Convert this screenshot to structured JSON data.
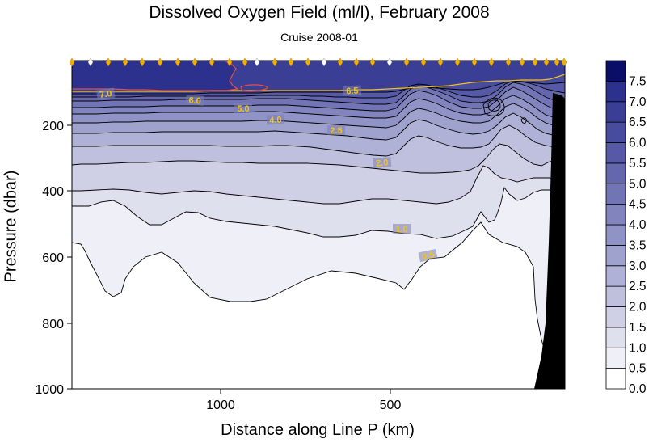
{
  "chart_data": {
    "type": "heatmap",
    "title": "Dissolved Oxygen Field  (ml/l),  February 2008",
    "subtitle": "Cruise 2008-01",
    "xlabel": "Distance along Line P  (km)",
    "ylabel": "Pressure  (dbar)",
    "x_axis": {
      "reversed": true,
      "ticks": [
        "1000",
        "500"
      ]
    },
    "y_axis": {
      "reversed": true,
      "ylim": [
        0,
        1000
      ],
      "ticks": [
        "200",
        "400",
        "600",
        "800",
        "1000"
      ]
    },
    "colorbar": {
      "levels": [
        "0.0",
        "0.5",
        "1.0",
        "1.5",
        "2.0",
        "2.5",
        "3.0",
        "3.5",
        "4.0",
        "4.5",
        "5.0",
        "5.5",
        "6.0",
        "6.5",
        "7.0",
        "7.5"
      ],
      "colors": [
        "#ffffff",
        "#efeff8",
        "#dfe0ee",
        "#cfd0e6",
        "#bfc0de",
        "#afb1d6",
        "#a0a2ce",
        "#9093c6",
        "#8184bd",
        "#7275b5",
        "#6467ad",
        "#5659a6",
        "#484c9e",
        "#3a3f95",
        "#2c318d",
        "#0a0e66"
      ]
    },
    "contour_labels": [
      "7.0",
      "6.0",
      "6.5",
      "5.0",
      "4.0",
      "2.5",
      "2.0",
      "1.0",
      "0.5"
    ],
    "station_markers": 27,
    "line_colors": {
      "contour": "#000000",
      "contour_7": "#e05050",
      "contour_6_5": "#f0c020",
      "marker_filled": "#f0b000",
      "marker_open": "#ffffff"
    }
  }
}
